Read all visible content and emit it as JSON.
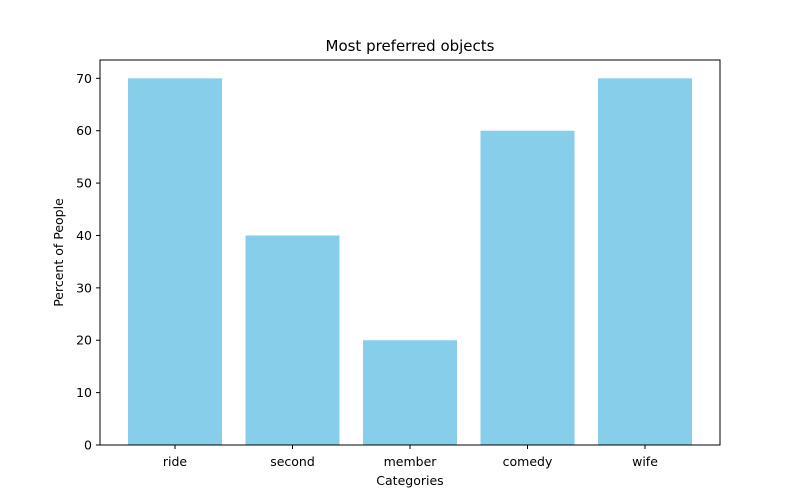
{
  "chart_data": {
    "type": "bar",
    "title": "Most preferred objects",
    "xlabel": "Categories",
    "ylabel": "Percent of People",
    "categories": [
      "ride",
      "second",
      "member",
      "comedy",
      "wife"
    ],
    "values": [
      70,
      40,
      20,
      60,
      70
    ],
    "ylim": [
      0,
      73.5
    ],
    "yticks": [
      0,
      10,
      20,
      30,
      40,
      50,
      60,
      70
    ],
    "grid": false,
    "legend": "none",
    "colors": {
      "bar": "#87ceeb",
      "axis": "#000000"
    }
  }
}
